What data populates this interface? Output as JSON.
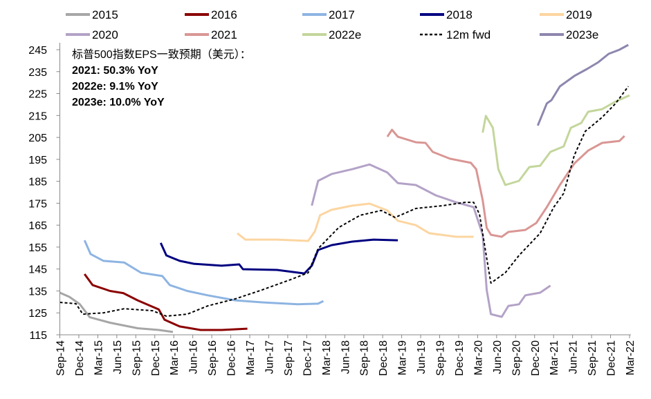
{
  "chart_data": {
    "type": "line",
    "title": "",
    "xlabel": "",
    "ylabel": "",
    "ylim": [
      115,
      245
    ],
    "y_ticks": [
      115,
      125,
      135,
      145,
      155,
      165,
      175,
      185,
      195,
      205,
      215,
      225,
      235,
      245
    ],
    "x_ticks": [
      "Sep-14",
      "Dec-14",
      "Mar-15",
      "Jun-15",
      "Sep-15",
      "Dec-15",
      "Mar-16",
      "Jun-16",
      "Sep-16",
      "Dec-16",
      "Mar-17",
      "Jun-17",
      "Sep-17",
      "Dec-17",
      "Mar-18",
      "Jun-18",
      "Sep-18",
      "Dec-18",
      "Mar-19",
      "Jun-19",
      "Sep-19",
      "Dec-19",
      "Mar-20",
      "Jun-20",
      "Sep-20",
      "Dec-20",
      "Mar-21",
      "Jun-21",
      "Sep-21",
      "Dec-21",
      "Mar-22"
    ],
    "xlim": [
      "2014-09-01",
      "2022-03-01"
    ],
    "grid": false,
    "legend_position": "top",
    "annotation": {
      "heading": "标普500指数EPS一致预期（美元）：",
      "lines": [
        "2021: 50.3% YoY",
        "2022e: 9.1% YoY",
        "2023e: 10.0% YoY"
      ]
    },
    "series": [
      {
        "name": "2015",
        "color": "#a6a6a6",
        "dash": false,
        "x": [
          "2014-09-01",
          "2014-10-16",
          "2014-12-05",
          "2015-01-23",
          "2015-04-29",
          "2015-09-10",
          "2015-12-20",
          "2016-02-27"
        ],
        "y": [
          134.2,
          132.3,
          129,
          123,
          120.5,
          118,
          117.2,
          116.3
        ]
      },
      {
        "name": "2016",
        "color": "#8b0000",
        "dash": false,
        "x": [
          "2014-12-28",
          "2015-02-06",
          "2015-04-29",
          "2015-07-02",
          "2015-09-10",
          "2015-12-20",
          "2016-01-17",
          "2016-03-29",
          "2016-07-08",
          "2016-10-18",
          "2017-02-20"
        ],
        "y": [
          142.7,
          137.7,
          135,
          134,
          130.7,
          126.6,
          121.9,
          118.8,
          117.2,
          117.2,
          117.8
        ]
      },
      {
        "name": "2017",
        "color": "#8db4e2",
        "dash": false,
        "x": [
          "2014-12-28",
          "2015-01-27",
          "2015-03-28",
          "2015-07-06",
          "2015-09-26",
          "2016-01-07",
          "2016-02-12",
          "2016-05-05",
          "2016-08-12",
          "2016-12-23",
          "2017-04-30",
          "2017-10-18",
          "2018-01-25",
          "2018-02-20"
        ],
        "y": [
          158.1,
          151.8,
          148.7,
          148,
          143.3,
          141.8,
          137.7,
          135,
          133,
          130.7,
          129.8,
          128.9,
          129.2,
          130.4
        ]
      },
      {
        "name": "2018",
        "color": "#000080",
        "dash": false,
        "x": [
          "2015-12-29",
          "2016-01-26",
          "2016-03-29",
          "2016-06-06",
          "2016-10-18",
          "2017-01-11",
          "2017-01-29",
          "2017-07-10",
          "2017-11-20",
          "2017-12-25",
          "2018-01-25",
          "2018-03-29",
          "2018-07-07",
          "2018-10-18",
          "2019-02-13"
        ],
        "y": [
          156.9,
          151.2,
          148.7,
          147.4,
          146.5,
          147.1,
          144.9,
          144.6,
          143,
          146.5,
          153.7,
          155.9,
          157.5,
          158.4,
          158.1
        ]
      },
      {
        "name": "2019",
        "color": "#fcd5a0",
        "dash": false,
        "x": [
          "2017-01-02",
          "2017-02-10",
          "2017-07-10",
          "2017-12-08",
          "2018-01-10",
          "2018-02-04",
          "2018-03-29",
          "2018-07-07",
          "2018-09-29",
          "2018-12-23",
          "2019-02-13",
          "2019-05-08",
          "2019-07-12",
          "2019-11-19",
          "2020-02-12"
        ],
        "y": [
          161.3,
          158.4,
          158.4,
          157.8,
          162.2,
          169.5,
          172,
          173.9,
          174.8,
          171.7,
          167,
          165,
          161.3,
          159.7,
          159.7
        ]
      },
      {
        "name": "2020",
        "color": "#b3a2c7",
        "dash": false,
        "x": [
          "2017-12-25",
          "2018-01-25",
          "2018-03-29",
          "2018-07-07",
          "2018-09-29",
          "2018-12-23",
          "2019-02-13",
          "2019-05-08",
          "2019-08-13",
          "2019-11-19",
          "2020-02-12",
          "2020-03-25",
          "2020-04-14",
          "2020-05-04",
          "2020-06-25",
          "2020-07-27",
          "2020-09-17",
          "2020-10-17",
          "2020-12-27",
          "2021-02-16"
        ],
        "y": [
          173.9,
          185.2,
          188.3,
          190.5,
          192.7,
          189,
          184.2,
          183.3,
          178.6,
          175.4,
          173.2,
          160.6,
          135.5,
          124.4,
          123.2,
          128.2,
          128.9,
          133,
          134.2,
          137.4
        ]
      },
      {
        "name": "2021",
        "color": "#d99694",
        "dash": false,
        "x": [
          "2018-12-23",
          "2019-01-15",
          "2019-02-13",
          "2019-05-08",
          "2019-06-24",
          "2019-07-28",
          "2019-10-20",
          "2020-01-29",
          "2020-02-24",
          "2020-03-25",
          "2020-04-14",
          "2020-05-04",
          "2020-06-25",
          "2020-07-27",
          "2020-10-17",
          "2020-12-09",
          "2021-01-29",
          "2021-04-01",
          "2021-06-09",
          "2021-08-15",
          "2021-10-21",
          "2022-01-13",
          "2022-02-07"
        ],
        "y": [
          205.3,
          208.5,
          205.3,
          202.8,
          202.5,
          198.4,
          195.3,
          193.4,
          190.5,
          176.4,
          163.8,
          160.6,
          159.7,
          161.9,
          162.8,
          166,
          173.2,
          183.3,
          193.1,
          199,
          202.5,
          203.4,
          205.7
        ]
      },
      {
        "name": "2022e",
        "color": "#c3d69b",
        "dash": false,
        "x": [
          "2020-03-25",
          "2020-04-10",
          "2020-05-13",
          "2020-06-09",
          "2020-07-12",
          "2020-09-17",
          "2020-11-06",
          "2020-12-27",
          "2021-02-16",
          "2021-04-19",
          "2021-05-23",
          "2021-07-12",
          "2021-08-15",
          "2021-10-21",
          "2021-12-25",
          "2022-03-01"
        ],
        "y": [
          207.2,
          214.8,
          209.4,
          190.5,
          183.3,
          185.2,
          191.5,
          192.1,
          198.4,
          200.9,
          209.4,
          211.6,
          216.7,
          217.9,
          221.4,
          224.2
        ]
      },
      {
        "name": "12m fwd",
        "color": "#000000",
        "dash": true,
        "x": [
          "2014-09-01",
          "2014-11-17",
          "2014-12-20",
          "2015-03-28",
          "2015-07-06",
          "2015-11-20",
          "2016-01-26",
          "2016-05-05",
          "2016-08-12",
          "2016-12-23",
          "2017-04-30",
          "2017-09-16",
          "2017-12-08",
          "2018-01-25",
          "2018-05-04",
          "2018-08-14",
          "2018-11-24",
          "2019-01-30",
          "2019-05-08",
          "2019-09-16",
          "2020-01-02",
          "2020-02-12",
          "2020-03-10",
          "2020-04-20",
          "2020-05-04",
          "2020-07-12",
          "2020-09-17",
          "2020-12-27",
          "2021-03-02",
          "2021-04-19",
          "2021-06-09",
          "2021-07-31",
          "2021-10-21",
          "2021-12-25",
          "2022-02-25"
        ],
        "y": [
          129.8,
          129.2,
          124.4,
          125,
          126.9,
          126,
          123.5,
          124.4,
          128.2,
          131.4,
          135.5,
          140.2,
          143.3,
          154.3,
          164,
          169.5,
          171.7,
          168.5,
          172.6,
          173.9,
          175.4,
          175.4,
          170,
          146.5,
          138.6,
          143.3,
          151.2,
          161.3,
          173.2,
          179.5,
          196.8,
          207.8,
          214.2,
          220.5,
          228.3
        ]
      },
      {
        "name": "2023e",
        "color": "#8e86ae",
        "dash": false,
        "x": [
          "2020-12-16",
          "2021-01-29",
          "2021-02-21",
          "2021-04-01",
          "2021-06-09",
          "2021-08-09",
          "2021-10-03",
          "2021-11-22",
          "2022-01-13",
          "2022-02-25"
        ],
        "y": [
          210.4,
          220.5,
          222,
          228.3,
          233,
          236.2,
          239.3,
          243.1,
          245,
          247.2
        ]
      }
    ]
  }
}
